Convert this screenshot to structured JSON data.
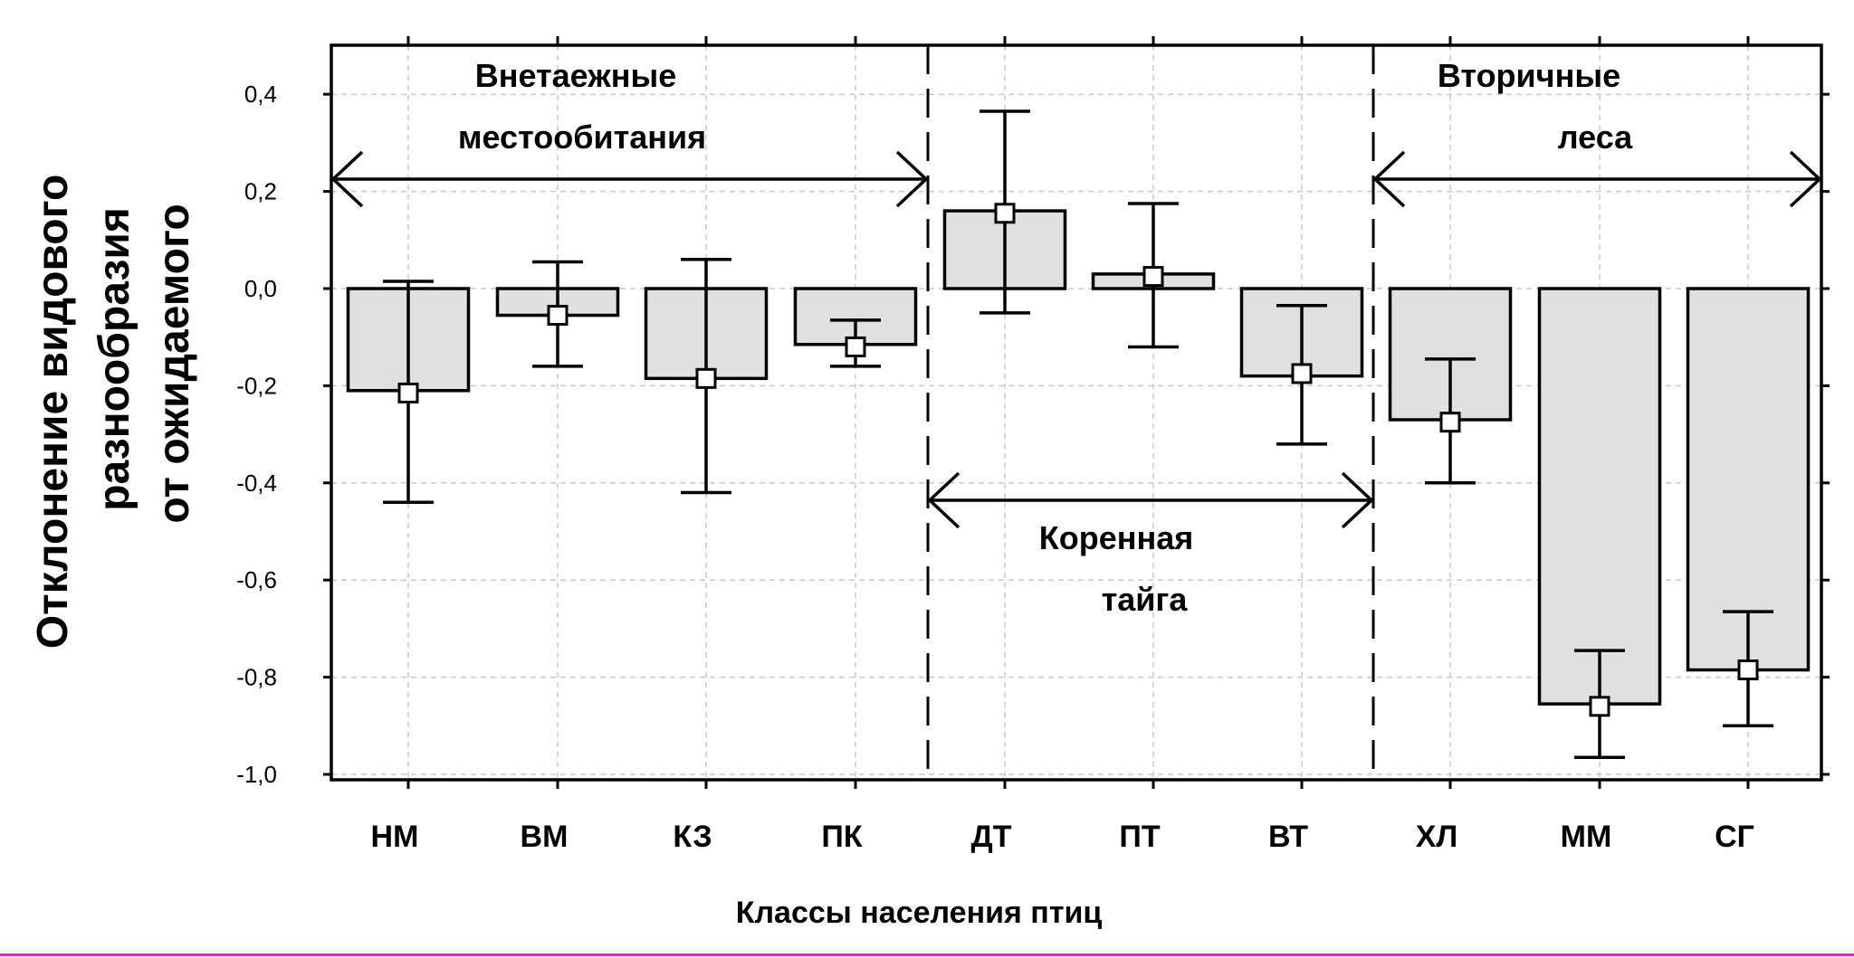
{
  "chart_data": {
    "type": "bar",
    "xlabel": "Классы населения птиц",
    "ylabel_lines": [
      "Отклонение видового",
      "разнообразия",
      "от ожидаемого"
    ],
    "categories": [
      "НМ",
      "ВМ",
      "КЗ",
      "ПК",
      "ДТ",
      "ПТ",
      "ВТ",
      "ХЛ",
      "ММ",
      "СГ"
    ],
    "series": [
      {
        "bars": [
          -0.21,
          -0.055,
          -0.185,
          -0.115,
          0.16,
          0.03,
          -0.18,
          -0.27,
          -0.855,
          -0.785
        ],
        "means": [
          -0.215,
          -0.055,
          -0.185,
          -0.12,
          0.155,
          0.025,
          -0.175,
          -0.275,
          -0.86,
          -0.785
        ],
        "err_low": [
          -0.44,
          -0.16,
          -0.42,
          -0.16,
          -0.05,
          -0.12,
          -0.32,
          -0.4,
          -0.965,
          -0.9
        ],
        "err_high": [
          0.015,
          0.055,
          0.06,
          -0.065,
          0.365,
          0.175,
          -0.035,
          -0.145,
          -0.745,
          -0.665
        ]
      }
    ],
    "ylim": [
      -1.0,
      0.5
    ],
    "yticks": [
      "0,4",
      "0,2",
      "0,0",
      "-0,2",
      "-0,4",
      "-0,6",
      "-0,8",
      "-1,0"
    ],
    "ytick_values": [
      0.4,
      0.2,
      0.0,
      -0.2,
      -0.4,
      -0.6,
      -0.8,
      -1.0
    ],
    "grid": true,
    "bar_color": "#e0e0e0",
    "annotations": {
      "group1": [
        "Внетаежные",
        "местообитания"
      ],
      "group2": [
        "Коренная",
        "тайга"
      ],
      "group3": [
        "Вторичные",
        "леса"
      ]
    }
  }
}
